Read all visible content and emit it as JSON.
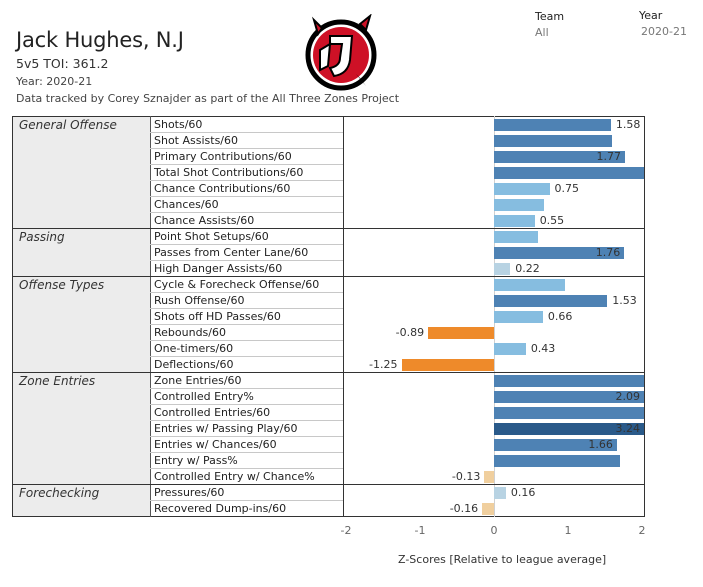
{
  "header": {
    "player": "Jack Hughes, N.J",
    "toi_label": "5v5 TOI:",
    "toi_value": "361.2",
    "year_line": "Year: 2020-21",
    "credit": "Data tracked by Corey Sznajder as part of the All Three Zones Project"
  },
  "filters": {
    "team_label": "Team",
    "team_value": "All",
    "year_label": "Year",
    "year_value": "2020-21"
  },
  "logo": {
    "icon": "new-jersey-devils-logo",
    "color": "#ce1126",
    "outline": "#000000"
  },
  "chart_data": {
    "type": "bar",
    "orientation": "horizontal",
    "x_title": "Z-Scores [Relative to league average]",
    "xlim": [
      -2.1,
      2.1
    ],
    "x_ticks": [
      "-2",
      "-1",
      "0",
      "1",
      "2"
    ],
    "groups": [
      {
        "name": "General Offense",
        "metrics": [
          {
            "label": "Shots/60",
            "value": 1.58,
            "text": "1.58"
          },
          {
            "label": "Shot Assists/60",
            "value": 1.6,
            "text": ""
          },
          {
            "label": "Primary Contributions/60",
            "value": 1.77,
            "text": "1.77"
          },
          {
            "label": "Total Shot Contributions/60",
            "value": 2.1,
            "text": ""
          },
          {
            "label": "Chance Contributions/60",
            "value": 0.75,
            "text": "0.75"
          },
          {
            "label": "Chances/60",
            "value": 0.68,
            "text": ""
          },
          {
            "label": "Chance Assists/60",
            "value": 0.55,
            "text": "0.55"
          }
        ]
      },
      {
        "name": "Passing",
        "metrics": [
          {
            "label": "Point Shot Setups/60",
            "value": 0.6,
            "text": ""
          },
          {
            "label": "Passes from Center Lane/60",
            "value": 1.76,
            "text": "1.76"
          },
          {
            "label": "High Danger Assists/60",
            "value": 0.22,
            "text": "0.22"
          }
        ]
      },
      {
        "name": "Offense Types",
        "metrics": [
          {
            "label": "Cycle & Forecheck Offense/60",
            "value": 0.96,
            "text": ""
          },
          {
            "label": "Rush Offense/60",
            "value": 1.53,
            "text": "1.53"
          },
          {
            "label": "Shots off HD Passes/60",
            "value": 0.66,
            "text": "0.66"
          },
          {
            "label": "Rebounds/60",
            "value": -0.89,
            "text": "-0.89"
          },
          {
            "label": "One-timers/60",
            "value": 0.43,
            "text": "0.43"
          },
          {
            "label": "Deflections/60",
            "value": -1.25,
            "text": "-1.25"
          }
        ]
      },
      {
        "name": "Zone Entries",
        "metrics": [
          {
            "label": "Zone Entries/60",
            "value": 2.1,
            "text": ""
          },
          {
            "label": "Controlled Entry%",
            "value": 2.09,
            "text": "2.09"
          },
          {
            "label": "Controlled Entries/60",
            "value": 2.1,
            "text": ""
          },
          {
            "label": "Entries w/ Passing Play/60",
            "value": 3.24,
            "text": "3.24"
          },
          {
            "label": "Entries w/ Chances/60",
            "value": 1.66,
            "text": "1.66"
          },
          {
            "label": "Entry w/ Pass%",
            "value": 1.7,
            "text": ""
          },
          {
            "label": "Controlled Entry w/ Chance%",
            "value": -0.13,
            "text": "-0.13"
          }
        ]
      },
      {
        "name": "Forechecking",
        "metrics": [
          {
            "label": "Pressures/60",
            "value": 0.16,
            "text": "0.16"
          },
          {
            "label": "Recovered Dump-ins/60",
            "value": -0.16,
            "text": "-0.16"
          }
        ]
      }
    ],
    "colors": {
      "pos_strong": "#2a5a8a",
      "pos_mid": "#4e82b4",
      "pos_light": "#86bde0",
      "pos_faint": "#b8d3e3",
      "neg_strong": "#ee8a2a",
      "neg_faint": "#f0cf9e"
    }
  }
}
